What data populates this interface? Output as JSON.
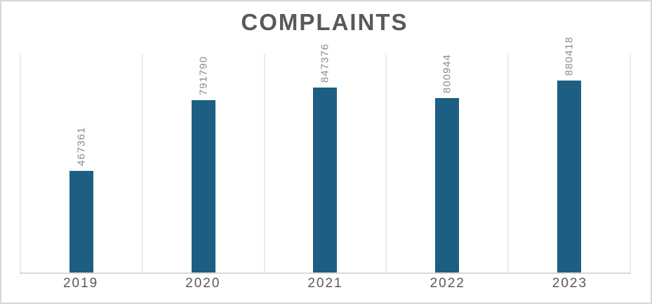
{
  "chart_data": {
    "type": "bar",
    "title": "COMPLAINTS",
    "categories": [
      "2019",
      "2020",
      "2021",
      "2022",
      "2023"
    ],
    "values": [
      467361,
      791790,
      847376,
      800944,
      880418
    ],
    "labels": [
      "467361",
      "791790",
      "847376",
      "800944",
      "880418"
    ],
    "series": [
      {
        "name": "Complaints",
        "values": [
          467361,
          791790,
          847376,
          800944,
          880418
        ]
      }
    ],
    "xlabel": "",
    "ylabel": "",
    "ylim": [
      0,
      1000000
    ],
    "bar_color": "#1c5f82",
    "legend_position": "none",
    "grid": "vertical lines at category boundaries, no horizontal gridlines, no y-axis tick labels",
    "data_label_rotation": "vertical, reading bottom-to-top, placed above each bar"
  }
}
